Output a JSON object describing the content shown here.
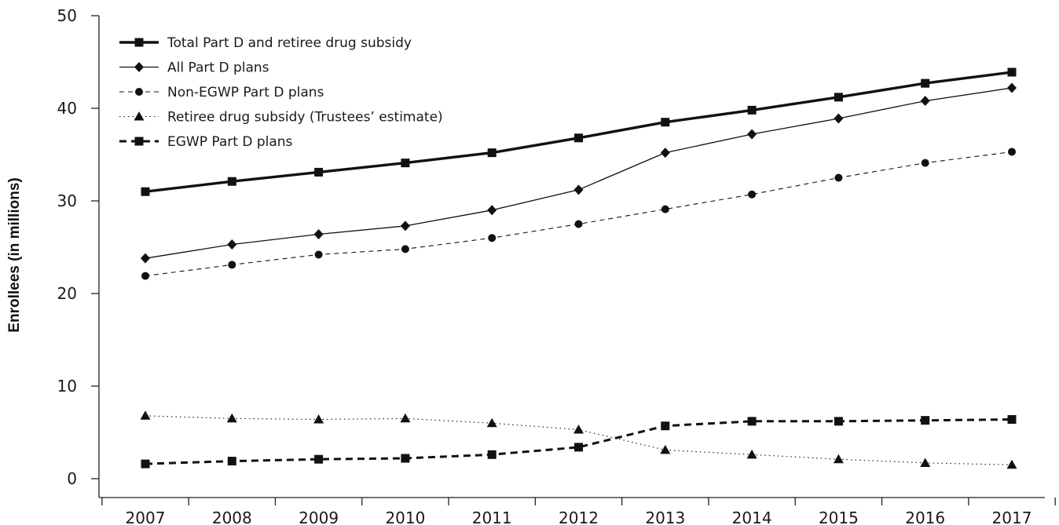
{
  "chart_data": {
    "type": "line",
    "title": "",
    "xlabel": "",
    "ylabel": "Enrollees (in millions)",
    "ylim": [
      0,
      50
    ],
    "y_ticks": [
      0,
      10,
      20,
      30,
      40,
      50
    ],
    "grid": false,
    "legend_position": "top-left",
    "x": [
      "2007",
      "2008",
      "2009",
      "2010",
      "2011",
      "2012",
      "2013",
      "2014",
      "2015",
      "2016",
      "2017"
    ],
    "series": [
      {
        "name": "Total Part D and retiree drug subsidy",
        "marker": "square",
        "line_style": "solid-thick",
        "values": [
          31.0,
          32.1,
          33.1,
          34.1,
          35.2,
          36.8,
          38.5,
          39.8,
          41.2,
          42.7,
          43.9
        ]
      },
      {
        "name": "All Part D plans",
        "marker": "diamond",
        "line_style": "solid-thin",
        "values": [
          23.8,
          25.3,
          26.4,
          27.3,
          29.0,
          31.2,
          35.2,
          37.2,
          38.9,
          40.8,
          42.2
        ]
      },
      {
        "name": "Non-EGWP Part D plans",
        "marker": "circle",
        "line_style": "dashed-thin",
        "values": [
          21.9,
          23.1,
          24.2,
          24.8,
          26.0,
          27.5,
          29.1,
          30.7,
          32.5,
          34.1,
          35.3
        ]
      },
      {
        "name": "Retiree drug subsidy (Trustees’ estimate)",
        "marker": "triangle",
        "line_style": "dotted",
        "values": [
          6.8,
          6.5,
          6.4,
          6.5,
          6.0,
          5.3,
          3.1,
          2.6,
          2.1,
          1.7,
          1.5
        ]
      },
      {
        "name": "EGWP Part D plans",
        "marker": "square",
        "line_style": "dashed-thick",
        "values": [
          1.6,
          1.9,
          2.1,
          2.2,
          2.6,
          3.4,
          5.7,
          6.2,
          6.2,
          6.3,
          6.4
        ]
      }
    ]
  }
}
